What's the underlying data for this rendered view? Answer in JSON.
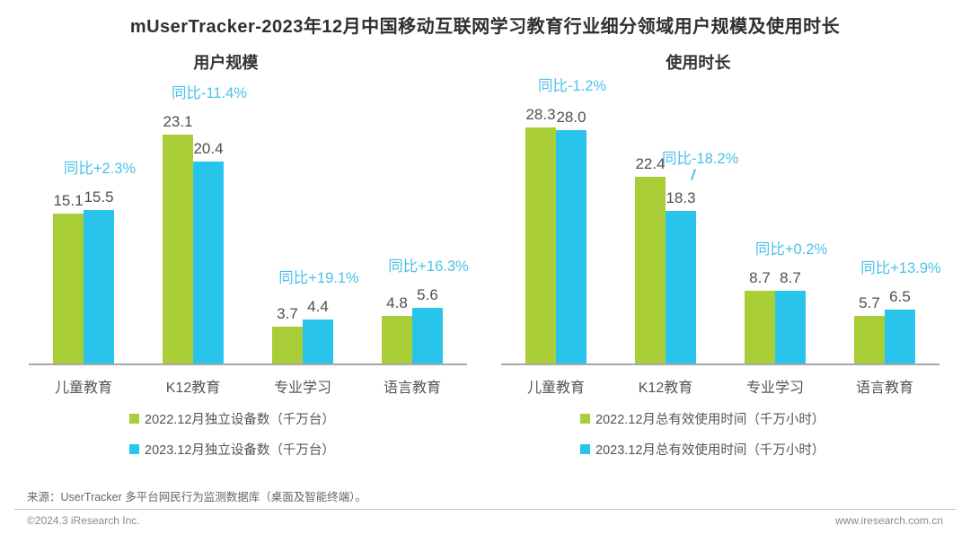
{
  "title": "mUserTracker-2023年12月中国移动互联网学习教育行业细分领域用户规模及使用时长",
  "colors": {
    "green": "#a9ce38",
    "blue": "#29c4ec",
    "yoy_text": "#4cc0e9",
    "axis": "#a8a8a8"
  },
  "chart_data": [
    {
      "type": "bar",
      "title": "用户规模",
      "categories": [
        "儿童教育",
        "K12教育",
        "专业学习",
        "语言教育"
      ],
      "series": [
        {
          "name": "2022.12月独立设备数（千万台）",
          "color": "#a9ce38",
          "values": [
            15.1,
            23.1,
            3.7,
            4.8
          ],
          "labels": [
            "15.1",
            "23.1",
            "3.7",
            "4.8"
          ]
        },
        {
          "name": "2023.12月独立设备数（千万台）",
          "color": "#29c4ec",
          "values": [
            15.5,
            20.4,
            4.4,
            5.6
          ],
          "labels": [
            "15.5",
            "20.4",
            "4.4",
            "5.6"
          ]
        }
      ],
      "yoy_labels": [
        "同比+2.3%",
        "同比-11.4%",
        "同比+19.1%",
        "同比+16.3%"
      ],
      "ylim": [
        0,
        24
      ],
      "grid": false,
      "legend_position": "bottom-left"
    },
    {
      "type": "bar",
      "title": "使用时长",
      "categories": [
        "儿童教育",
        "K12教育",
        "专业学习",
        "语言教育"
      ],
      "series": [
        {
          "name": "2022.12月总有效使用时间（千万小时）",
          "color": "#a9ce38",
          "values": [
            28.3,
            22.4,
            8.7,
            5.7
          ],
          "labels": [
            "28.3",
            "22.4",
            "8.7",
            "5.7"
          ]
        },
        {
          "name": "2023.12月总有效使用时间（千万小时）",
          "color": "#29c4ec",
          "values": [
            28.0,
            18.3,
            8.7,
            6.5
          ],
          "labels": [
            "28.0",
            "18.3",
            "8.7",
            "6.5"
          ]
        }
      ],
      "yoy_labels": [
        "同比-1.2%",
        "同比-18.2%",
        "同比+0.2%",
        "同比+13.9%"
      ],
      "ylim": [
        0,
        28.5
      ],
      "grid": false,
      "legend_position": "bottom-left"
    }
  ],
  "footer": {
    "source": "来源：UserTracker 多平台网民行为监测数据库（桌面及智能终端）。",
    "copyright": "©2024.3 iResearch Inc.",
    "website": "www.iresearch.com.cn"
  }
}
